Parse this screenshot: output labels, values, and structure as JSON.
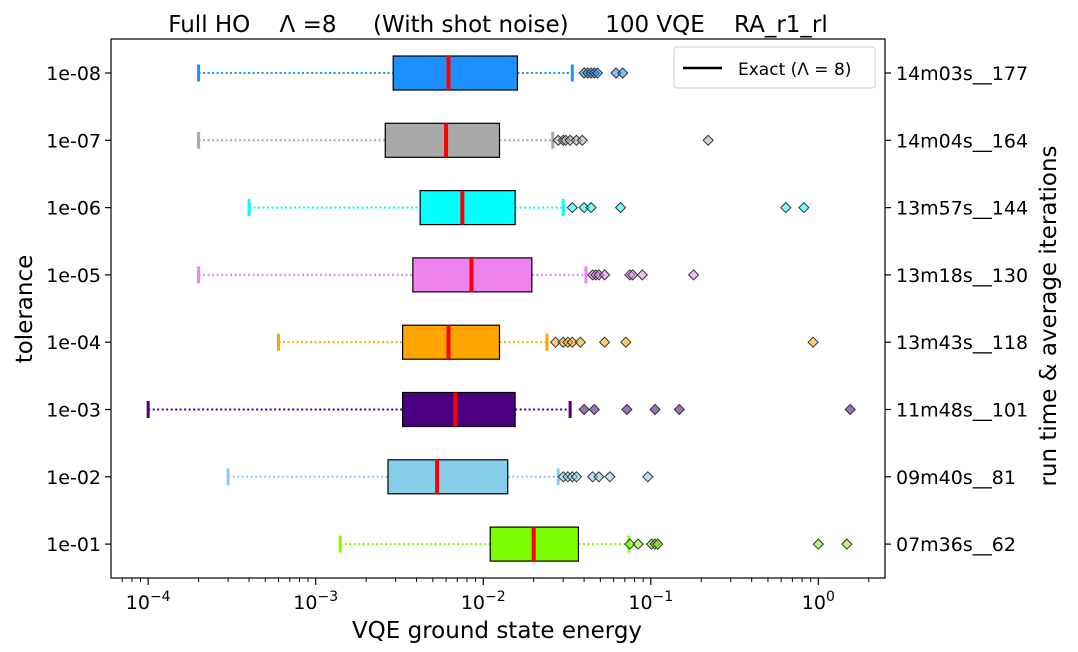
{
  "chart_data": {
    "type": "boxplot",
    "title": "Full HO    Λ =8     (With shot noise)     100 VQE    RA_r1_rl",
    "xlabel": "VQE ground state energy",
    "ylabel": "tolerance",
    "ylabel_right": "run time & average iterations",
    "x_scale": "log",
    "xlim": [
      6e-05,
      2.5
    ],
    "x_ticks": [
      {
        "value": 0.0001,
        "base": "10",
        "exp": "−4"
      },
      {
        "value": 0.001,
        "base": "10",
        "exp": "−3"
      },
      {
        "value": 0.01,
        "base": "10",
        "exp": "−2"
      },
      {
        "value": 0.1,
        "base": "10",
        "exp": "−1"
      },
      {
        "value": 1,
        "base": "10",
        "exp": "0"
      }
    ],
    "legend": {
      "placement": "top-right",
      "entries": [
        {
          "label": "Exact (Λ = 8)",
          "color": "#000000"
        }
      ]
    },
    "median_color": "#ff0000",
    "series": [
      {
        "tolerance": "1e-08",
        "runtime": "14m03s__177",
        "color": "#1e90ff",
        "whisker_low": 0.0002,
        "q1": 0.0029,
        "median": 0.0062,
        "q3": 0.016,
        "whisker_high": 0.034,
        "outliers": [
          0.04,
          0.042,
          0.044,
          0.046,
          0.048,
          0.062,
          0.068
        ]
      },
      {
        "tolerance": "1e-07",
        "runtime": "14m04s__164",
        "color": "#a9a9a9",
        "whisker_low": 0.0002,
        "q1": 0.0026,
        "median": 0.006,
        "q3": 0.0125,
        "whisker_high": 0.026,
        "outliers": [
          0.028,
          0.03,
          0.031,
          0.033,
          0.036,
          0.039,
          0.22
        ]
      },
      {
        "tolerance": "1e-06",
        "runtime": "13m57s__144",
        "color": "#00ffff",
        "whisker_low": 0.0004,
        "q1": 0.0042,
        "median": 0.0075,
        "q3": 0.0155,
        "whisker_high": 0.03,
        "outliers": [
          0.034,
          0.04,
          0.044,
          0.066,
          0.64,
          0.82
        ]
      },
      {
        "tolerance": "1e-05",
        "runtime": "13m18s__130",
        "color": "#ee82ee",
        "whisker_low": 0.0002,
        "q1": 0.0038,
        "median": 0.0085,
        "q3": 0.0195,
        "whisker_high": 0.041,
        "outliers": [
          0.045,
          0.047,
          0.049,
          0.053,
          0.075,
          0.078,
          0.089,
          0.18
        ]
      },
      {
        "tolerance": "1e-04",
        "runtime": "13m43s__118",
        "color": "#ffa500",
        "whisker_low": 0.0006,
        "q1": 0.0033,
        "median": 0.0062,
        "q3": 0.0125,
        "whisker_high": 0.024,
        "outliers": [
          0.027,
          0.03,
          0.032,
          0.034,
          0.038,
          0.053,
          0.071,
          0.93
        ]
      },
      {
        "tolerance": "1e-03",
        "runtime": "11m48s__101",
        "color": "#4b0082",
        "whisker_low": 0.0001,
        "q1": 0.0033,
        "median": 0.0068,
        "q3": 0.0155,
        "whisker_high": 0.033,
        "outliers": [
          0.04,
          0.046,
          0.072,
          0.106,
          0.148,
          1.55
        ]
      },
      {
        "tolerance": "1e-02",
        "runtime": "09m40s__81",
        "color": "#87ceeb",
        "whisker_low": 0.0003,
        "q1": 0.0027,
        "median": 0.0053,
        "q3": 0.014,
        "whisker_high": 0.028,
        "outliers": [
          0.03,
          0.032,
          0.034,
          0.036,
          0.045,
          0.049,
          0.057,
          0.096
        ]
      },
      {
        "tolerance": "1e-01",
        "runtime": "07m36s__62",
        "color": "#7cfc00",
        "whisker_low": 0.0014,
        "q1": 0.011,
        "median": 0.02,
        "q3": 0.037,
        "whisker_high": 0.074,
        "outliers": [
          0.075,
          0.084,
          0.101,
          0.106,
          0.11,
          1.0,
          1.48
        ]
      }
    ]
  }
}
